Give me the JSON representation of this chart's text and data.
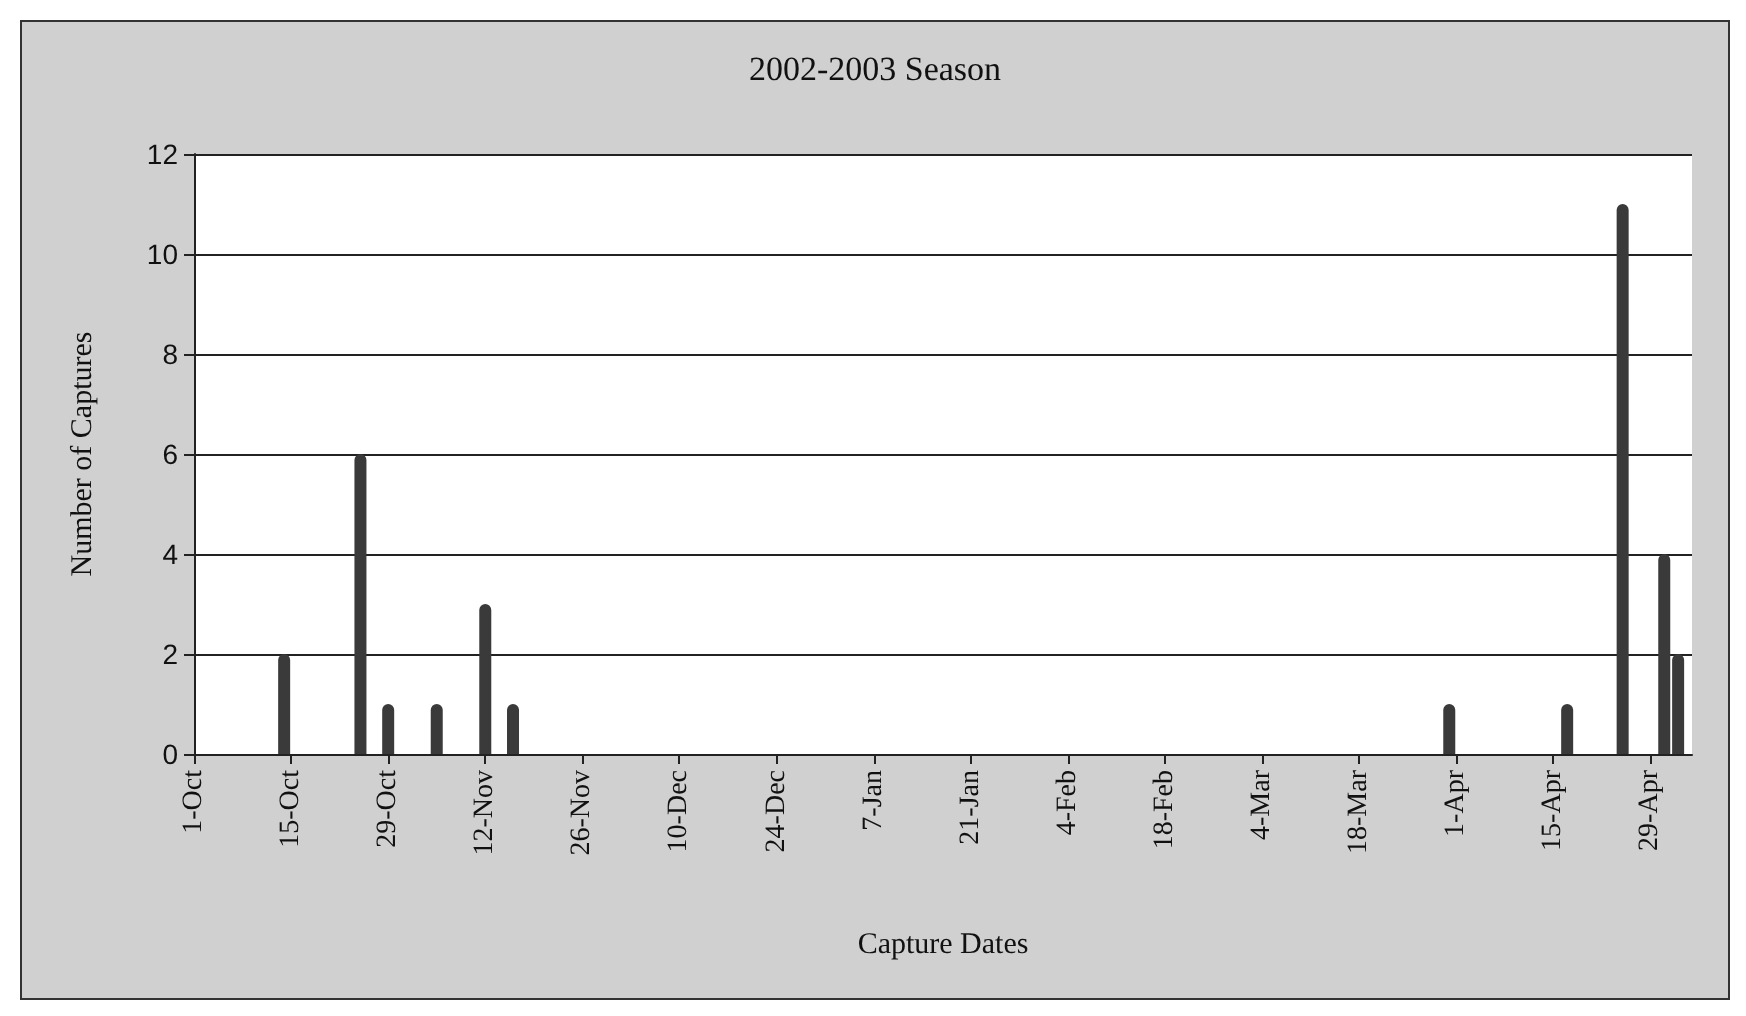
{
  "chart_data": {
    "type": "bar",
    "title": "2002-2003 Season",
    "xlabel": "Capture Dates",
    "ylabel": "Number of Captures",
    "x": [
      "2002-10-14",
      "2002-10-25",
      "2002-10-29",
      "2002-11-05",
      "2002-11-12",
      "2002-11-16",
      "2003-03-31",
      "2003-04-17",
      "2003-04-25",
      "2003-05-01",
      "2003-05-03"
    ],
    "series": [
      {
        "color": "#3a3a3a",
        "values": [
          2,
          6,
          1,
          1,
          3,
          1,
          1,
          1,
          11,
          4,
          2
        ]
      }
    ],
    "xlim": [
      "2002-10-01",
      "2003-05-05"
    ],
    "xticks": [
      {
        "value": "2002-10-01",
        "label": "1-Oct"
      },
      {
        "value": "2002-10-15",
        "label": "15-Oct"
      },
      {
        "value": "2002-10-29",
        "label": "29-Oct"
      },
      {
        "value": "2002-11-12",
        "label": "12-Nov"
      },
      {
        "value": "2002-11-26",
        "label": "26-Nov"
      },
      {
        "value": "2002-12-10",
        "label": "10-Dec"
      },
      {
        "value": "2002-12-24",
        "label": "24-Dec"
      },
      {
        "value": "2003-01-07",
        "label": "7-Jan"
      },
      {
        "value": "2003-01-21",
        "label": "21-Jan"
      },
      {
        "value": "2003-02-04",
        "label": "4-Feb"
      },
      {
        "value": "2003-02-18",
        "label": "18-Feb"
      },
      {
        "value": "2003-03-04",
        "label": "4-Mar"
      },
      {
        "value": "2003-03-18",
        "label": "18-Mar"
      },
      {
        "value": "2003-04-01",
        "label": "1-Apr"
      },
      {
        "value": "2003-04-15",
        "label": "15-Apr"
      },
      {
        "value": "2003-04-29",
        "label": "29-Apr"
      }
    ],
    "ylim": [
      0,
      12
    ],
    "yticks": [
      0,
      2,
      4,
      6,
      8,
      10,
      12
    ],
    "grid": "y"
  }
}
